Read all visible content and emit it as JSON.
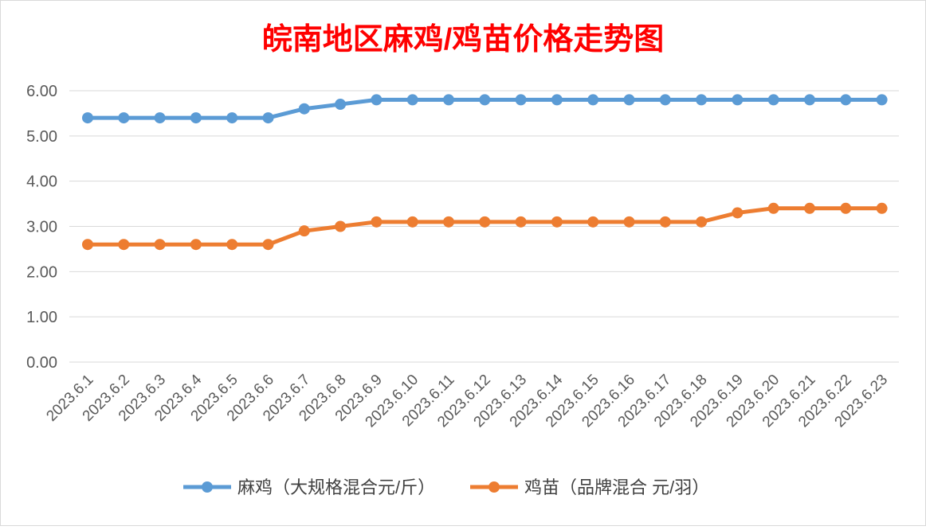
{
  "chart_data": {
    "type": "line",
    "title": "皖南地区麻鸡/鸡苗价格走势图",
    "title_color": "#FF0000",
    "categories": [
      "2023.6.1",
      "2023.6.2",
      "2023.6.3",
      "2023.6.4",
      "2023.6.5",
      "2023.6.6",
      "2023.6.7",
      "2023.6.8",
      "2023.6.9",
      "2023.6.10",
      "2023.6.11",
      "2023.6.12",
      "2023.6.13",
      "2023.6.14",
      "2023.6.15",
      "2023.6.16",
      "2023.6.17",
      "2023.6.18",
      "2023.6.19",
      "2023.6.20",
      "2023.6.21",
      "2023.6.22",
      "2023.6.23"
    ],
    "y_ticks": [
      "0.00",
      "1.00",
      "2.00",
      "3.00",
      "4.00",
      "5.00",
      "6.00"
    ],
    "ylim": [
      0,
      6
    ],
    "grid": true,
    "legend_position": "bottom",
    "series": [
      {
        "name": "麻鸡（大规格混合元/斤）",
        "color": "#5B9BD5",
        "values": [
          5.4,
          5.4,
          5.4,
          5.4,
          5.4,
          5.4,
          5.6,
          5.7,
          5.8,
          5.8,
          5.8,
          5.8,
          5.8,
          5.8,
          5.8,
          5.8,
          5.8,
          5.8,
          5.8,
          5.8,
          5.8,
          5.8,
          5.8
        ]
      },
      {
        "name": "鸡苗（品牌混合 元/羽）",
        "color": "#ED7D31",
        "values": [
          2.6,
          2.6,
          2.6,
          2.6,
          2.6,
          2.6,
          2.9,
          3.0,
          3.1,
          3.1,
          3.1,
          3.1,
          3.1,
          3.1,
          3.1,
          3.1,
          3.1,
          3.1,
          3.3,
          3.4,
          3.4,
          3.4,
          3.4
        ]
      }
    ]
  }
}
